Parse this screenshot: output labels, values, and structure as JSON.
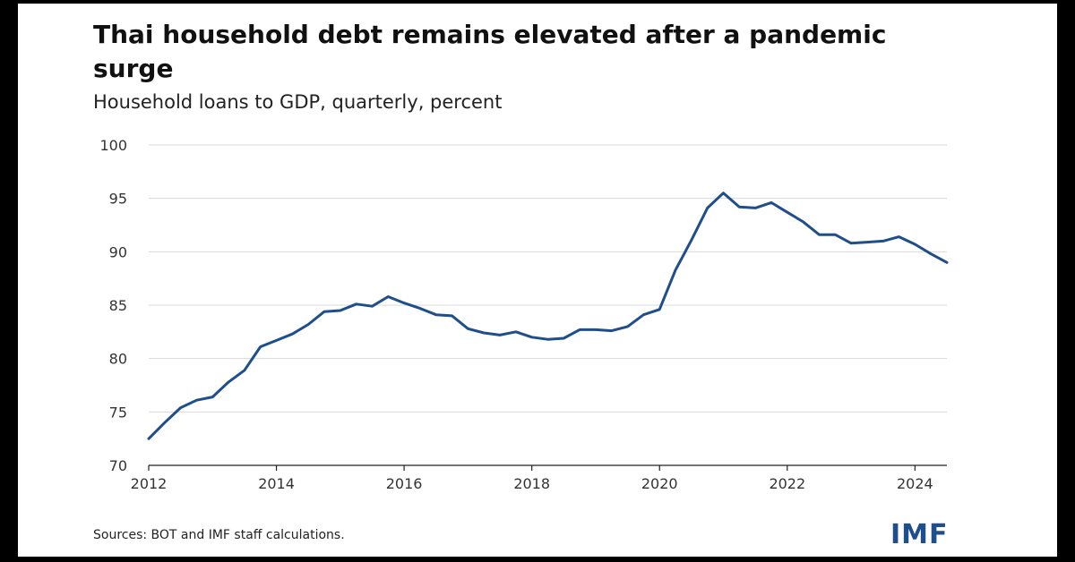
{
  "chart_data": {
    "type": "line",
    "title": "Thai household debt remains elevated after a pandemic surge",
    "subtitle": "Household loans to GDP, quarterly, percent",
    "xlabel": "",
    "ylabel": "",
    "xlim": [
      2012,
      2024.5
    ],
    "ylim": [
      70,
      100
    ],
    "yticks": [
      70,
      75,
      80,
      85,
      90,
      95,
      100
    ],
    "xticks": [
      2012,
      2014,
      2016,
      2018,
      2020,
      2022,
      2024
    ],
    "grid": true,
    "line_color": "#1f4e8c",
    "series": [
      {
        "x": [
          2012.0,
          2012.25,
          2012.5,
          2012.75,
          2013.0,
          2013.25,
          2013.5,
          2013.75,
          2014.0,
          2014.25,
          2014.5,
          2014.75,
          2015.0,
          2015.25,
          2015.5,
          2015.75,
          2016.0,
          2016.25,
          2016.5,
          2016.75,
          2017.0,
          2017.25,
          2017.5,
          2017.75,
          2018.0,
          2018.25,
          2018.5,
          2018.75,
          2019.0,
          2019.25,
          2019.5,
          2019.75,
          2020.0,
          2020.25,
          2020.5,
          2020.75,
          2021.0,
          2021.25,
          2021.5,
          2021.75,
          2022.0,
          2022.25,
          2022.5,
          2022.75,
          2023.0,
          2023.25,
          2023.5,
          2023.75,
          2024.0,
          2024.25,
          2024.5
        ],
        "values": [
          72.5,
          74.0,
          75.4,
          76.1,
          76.4,
          77.8,
          78.9,
          81.1,
          81.7,
          82.3,
          83.2,
          84.4,
          84.5,
          85.1,
          84.9,
          85.8,
          85.2,
          84.7,
          84.1,
          84.0,
          82.8,
          82.4,
          82.2,
          82.5,
          82.0,
          81.8,
          81.9,
          82.7,
          82.7,
          82.6,
          83.0,
          84.1,
          84.6,
          88.3,
          91.1,
          94.1,
          95.5,
          94.2,
          94.1,
          94.6,
          93.7,
          92.8,
          91.6,
          91.6,
          90.8,
          90.9,
          91.0,
          91.4,
          90.7,
          89.8,
          89.0
        ]
      }
    ]
  },
  "footer": {
    "source": "Sources: BOT and IMF staff calculations.",
    "logo_text": "IMF"
  },
  "colors": {
    "line": "#1f4e8c",
    "logo": "#1f4e8c",
    "grid": "#d9d9d9",
    "background": "#ffffff"
  }
}
